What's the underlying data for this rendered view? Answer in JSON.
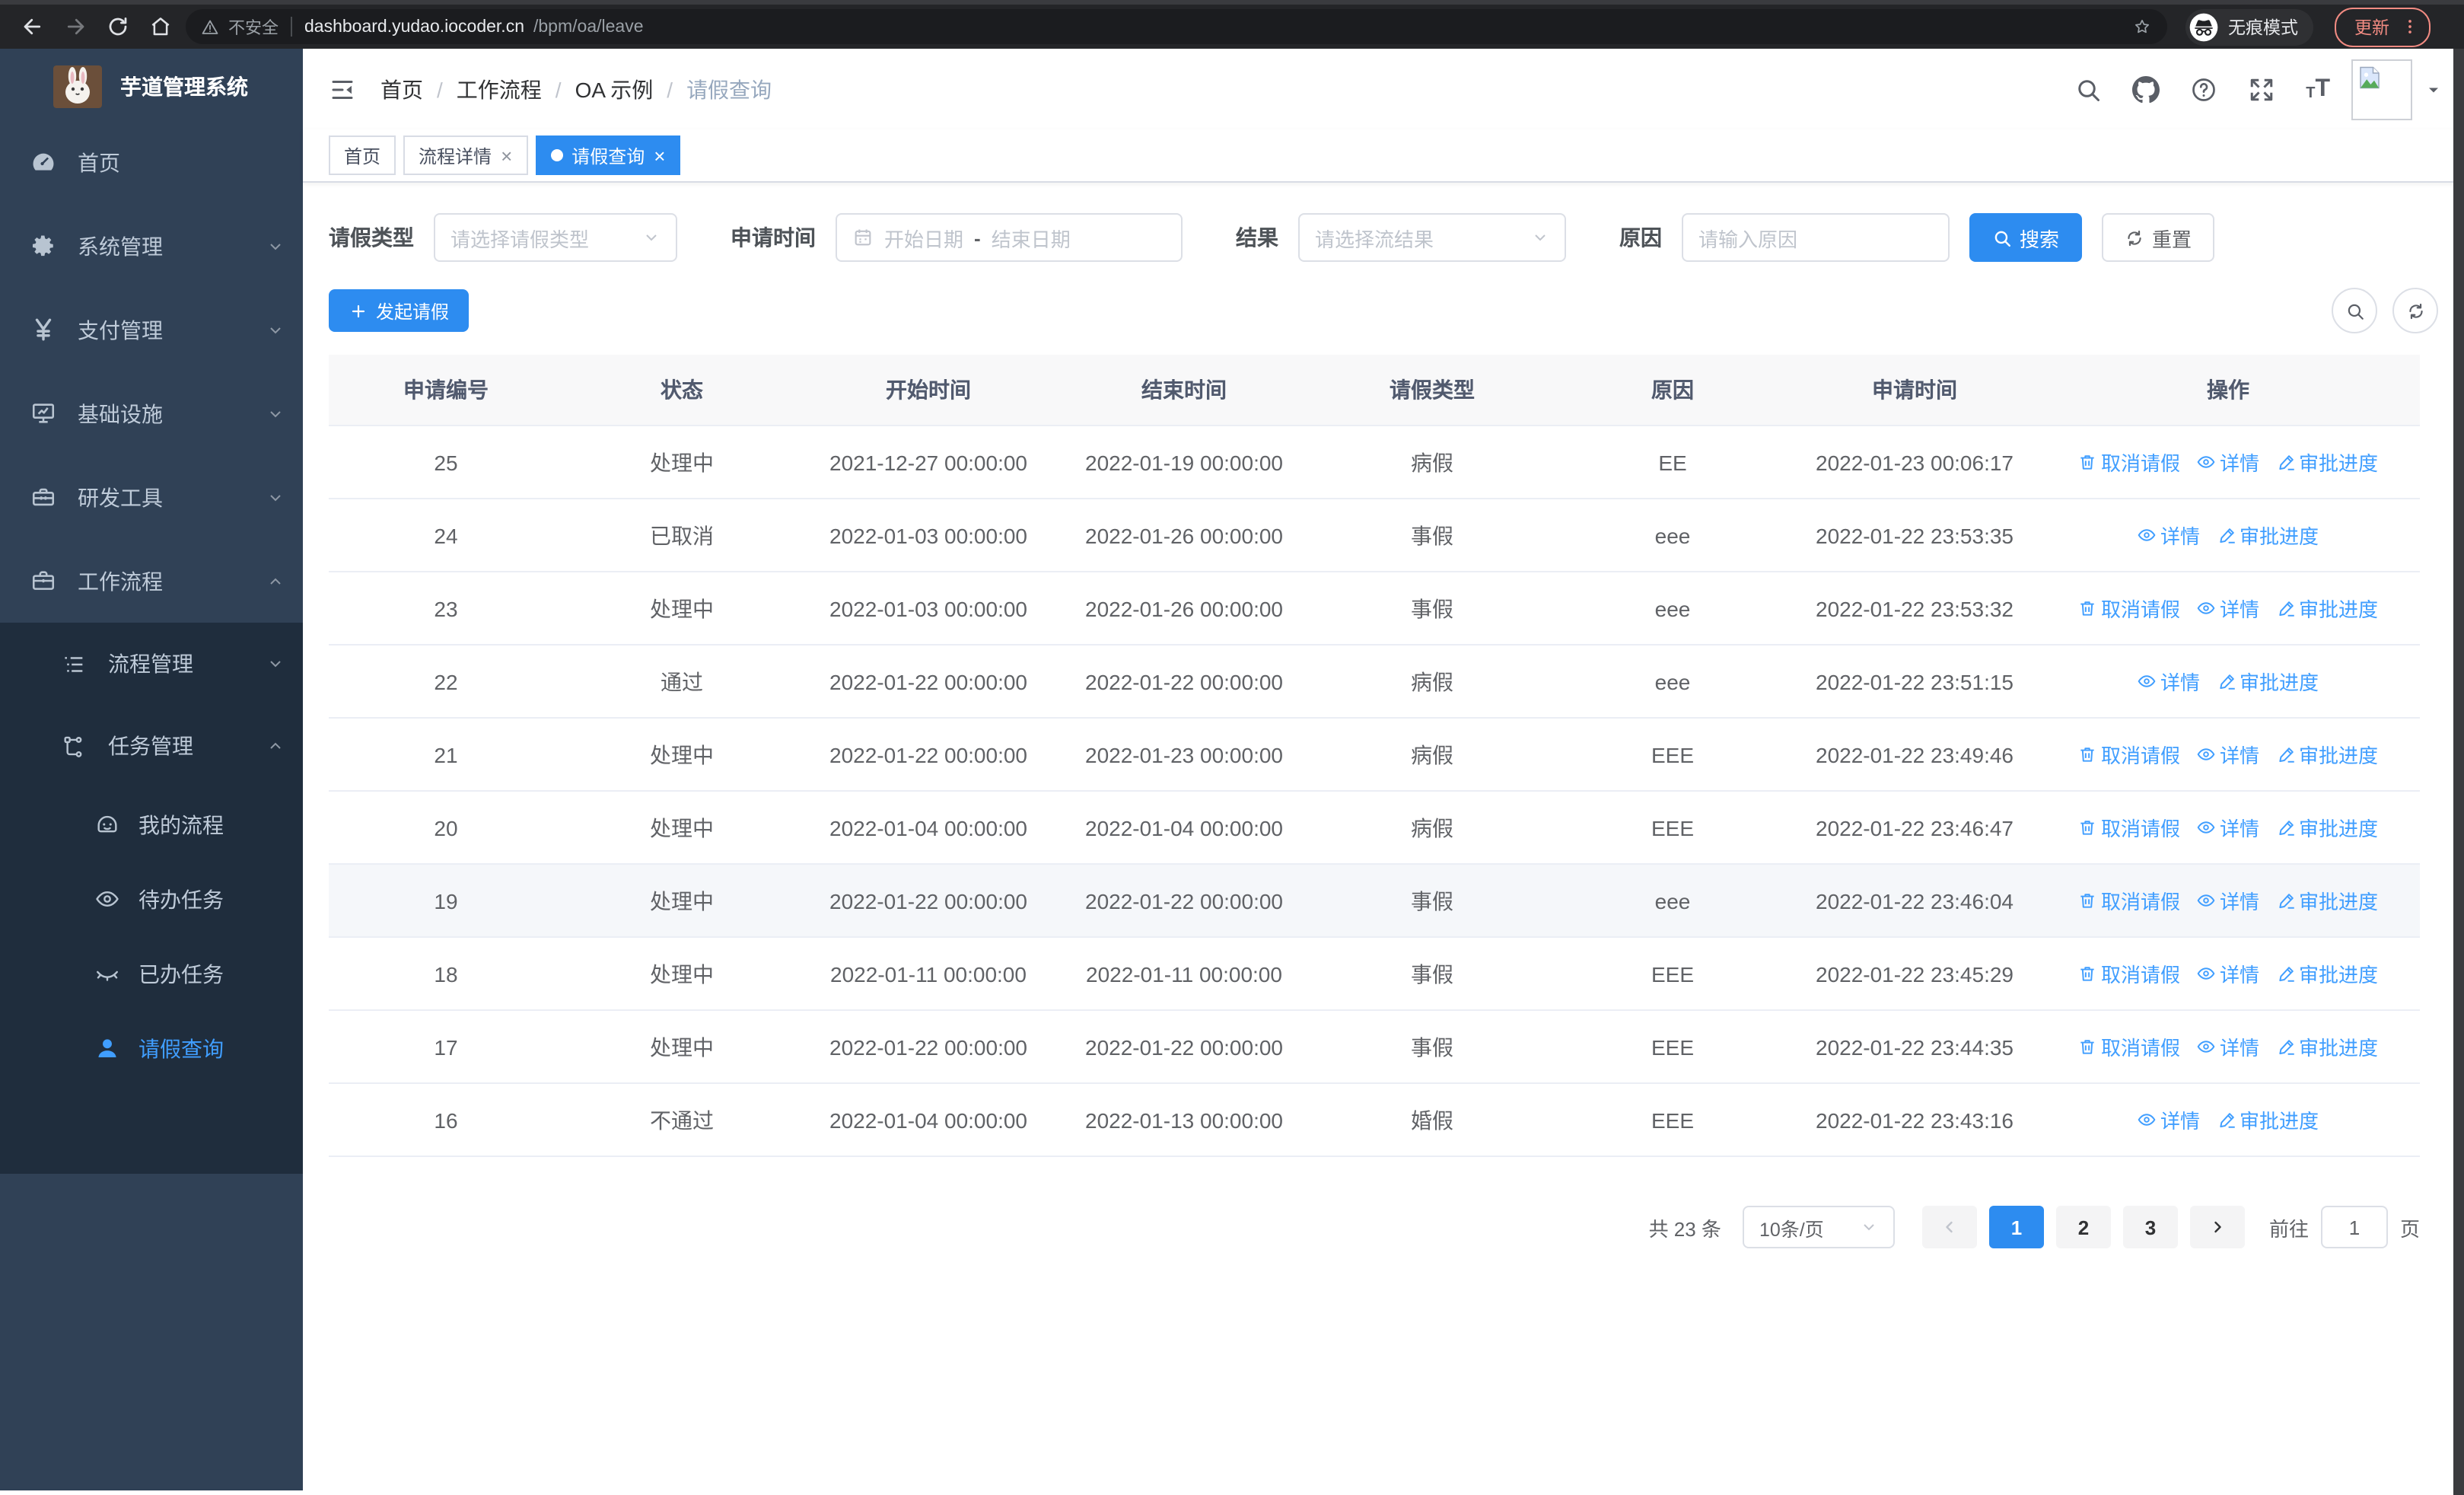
{
  "browser": {
    "security_label": "不安全",
    "url_host": "dashboard.yudao.iocoder.cn",
    "url_path": "/bpm/oa/leave",
    "incognito_label": "无痕模式",
    "update_label": "更新"
  },
  "sidebar": {
    "title": "芋道管理系统",
    "items": [
      {
        "key": "home",
        "label": "首页",
        "icon": "dashboard-icon",
        "expandable": false
      },
      {
        "key": "system",
        "label": "系统管理",
        "icon": "gear-icon",
        "expandable": true
      },
      {
        "key": "payment",
        "label": "支付管理",
        "icon": "yen-icon",
        "expandable": true
      },
      {
        "key": "infra",
        "label": "基础设施",
        "icon": "monitor-icon",
        "expandable": true
      },
      {
        "key": "devtools",
        "label": "研发工具",
        "icon": "toolbox-icon",
        "expandable": true
      },
      {
        "key": "workflow",
        "label": "工作流程",
        "icon": "briefcase-icon",
        "expandable": true,
        "expanded": true
      }
    ],
    "submenu": [
      {
        "key": "process-mgmt",
        "label": "流程管理",
        "icon": "list-tree-icon",
        "level": 1,
        "expandable": true
      },
      {
        "key": "task-mgmt",
        "label": "任务管理",
        "icon": "flow-icon",
        "level": 1,
        "expandable": true,
        "expanded": true
      },
      {
        "key": "my-process",
        "label": "我的流程",
        "icon": "face-icon",
        "level": 2
      },
      {
        "key": "todo-tasks",
        "label": "待办任务",
        "icon": "eye-icon",
        "level": 2
      },
      {
        "key": "done-tasks",
        "label": "已办任务",
        "icon": "eye-closed-icon",
        "level": 2
      },
      {
        "key": "leave-query",
        "label": "请假查询",
        "icon": "user-icon",
        "level": 2,
        "active": true
      }
    ]
  },
  "breadcrumb": [
    "首页",
    "工作流程",
    "OA 示例",
    "请假查询"
  ],
  "tabs": [
    {
      "key": "home",
      "label": "首页",
      "closable": false,
      "active": false
    },
    {
      "key": "process-detail",
      "label": "流程详情",
      "closable": true,
      "active": false
    },
    {
      "key": "leave-query",
      "label": "请假查询",
      "closable": true,
      "active": true
    }
  ],
  "filters": {
    "type_label": "请假类型",
    "type_placeholder": "请选择请假类型",
    "time_label": "申请时间",
    "date_start_placeholder": "开始日期",
    "date_separator": "-",
    "date_end_placeholder": "结束日期",
    "result_label": "结果",
    "result_placeholder": "请选择流结果",
    "reason_label": "原因",
    "reason_placeholder": "请输入原因",
    "search_label": "搜索",
    "reset_label": "重置"
  },
  "toolbar": {
    "create_label": "发起请假"
  },
  "table": {
    "columns": [
      "申请编号",
      "状态",
      "开始时间",
      "结束时间",
      "请假类型",
      "原因",
      "申请时间",
      "操作"
    ],
    "rows": [
      {
        "id": "25",
        "status": "处理中",
        "start": "2021-12-27 00:00:00",
        "end": "2022-01-19 00:00:00",
        "type": "病假",
        "reason": "EE",
        "applied": "2022-01-23 00:06:17",
        "actions": [
          "cancel",
          "detail",
          "progress"
        ],
        "highlight": false
      },
      {
        "id": "24",
        "status": "已取消",
        "start": "2022-01-03 00:00:00",
        "end": "2022-01-26 00:00:00",
        "type": "事假",
        "reason": "eee",
        "applied": "2022-01-22 23:53:35",
        "actions": [
          "detail",
          "progress"
        ],
        "highlight": false
      },
      {
        "id": "23",
        "status": "处理中",
        "start": "2022-01-03 00:00:00",
        "end": "2022-01-26 00:00:00",
        "type": "事假",
        "reason": "eee",
        "applied": "2022-01-22 23:53:32",
        "actions": [
          "cancel",
          "detail",
          "progress"
        ],
        "highlight": false
      },
      {
        "id": "22",
        "status": "通过",
        "start": "2022-01-22 00:00:00",
        "end": "2022-01-22 00:00:00",
        "type": "病假",
        "reason": "eee",
        "applied": "2022-01-22 23:51:15",
        "actions": [
          "detail",
          "progress"
        ],
        "highlight": false
      },
      {
        "id": "21",
        "status": "处理中",
        "start": "2022-01-22 00:00:00",
        "end": "2022-01-23 00:00:00",
        "type": "病假",
        "reason": "EEE",
        "applied": "2022-01-22 23:49:46",
        "actions": [
          "cancel",
          "detail",
          "progress"
        ],
        "highlight": false
      },
      {
        "id": "20",
        "status": "处理中",
        "start": "2022-01-04 00:00:00",
        "end": "2022-01-04 00:00:00",
        "type": "病假",
        "reason": "EEE",
        "applied": "2022-01-22 23:46:47",
        "actions": [
          "cancel",
          "detail",
          "progress"
        ],
        "highlight": false
      },
      {
        "id": "19",
        "status": "处理中",
        "start": "2022-01-22 00:00:00",
        "end": "2022-01-22 00:00:00",
        "type": "事假",
        "reason": "eee",
        "applied": "2022-01-22 23:46:04",
        "actions": [
          "cancel",
          "detail",
          "progress"
        ],
        "highlight": true
      },
      {
        "id": "18",
        "status": "处理中",
        "start": "2022-01-11 00:00:00",
        "end": "2022-01-11 00:00:00",
        "type": "事假",
        "reason": "EEE",
        "applied": "2022-01-22 23:45:29",
        "actions": [
          "cancel",
          "detail",
          "progress"
        ],
        "highlight": false
      },
      {
        "id": "17",
        "status": "处理中",
        "start": "2022-01-22 00:00:00",
        "end": "2022-01-22 00:00:00",
        "type": "事假",
        "reason": "EEE",
        "applied": "2022-01-22 23:44:35",
        "actions": [
          "cancel",
          "detail",
          "progress"
        ],
        "highlight": false
      },
      {
        "id": "16",
        "status": "不通过",
        "start": "2022-01-04 00:00:00",
        "end": "2022-01-13 00:00:00",
        "type": "婚假",
        "reason": "EEE",
        "applied": "2022-01-22 23:43:16",
        "actions": [
          "detail",
          "progress"
        ],
        "highlight": false
      }
    ]
  },
  "actions": {
    "cancel": "取消请假",
    "detail": "详情",
    "progress": "审批进度"
  },
  "pagination": {
    "total_label": "共 23 条",
    "page_size": "10条/页",
    "pages": [
      "1",
      "2",
      "3"
    ],
    "active_page": "1",
    "goto_label": "前往",
    "goto_value": "1",
    "goto_suffix": "页"
  },
  "colors": {
    "primary": "#2d8cf0",
    "link": "#409eff",
    "sidebar_bg": "#304156",
    "submenu_bg": "#1f2d3d",
    "active_text": "#409eff"
  }
}
